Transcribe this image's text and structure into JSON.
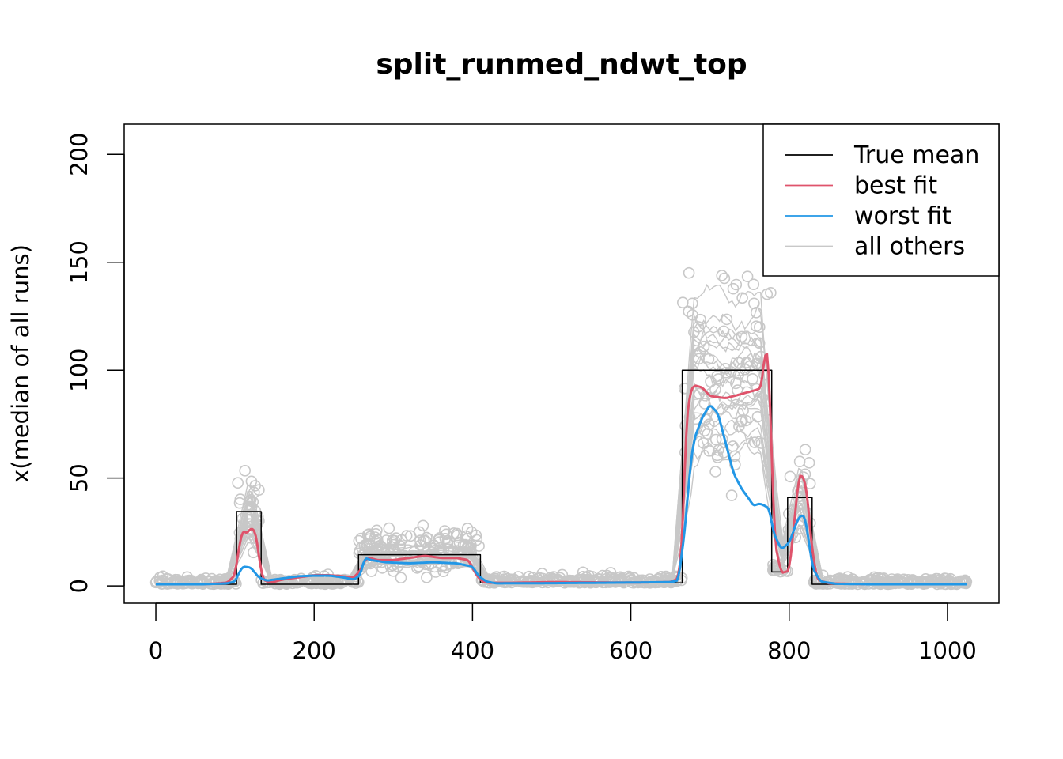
{
  "chart_data": {
    "type": "line",
    "title": "split_runmed_ndwt_top",
    "xlabel": "",
    "ylabel": "x(median of all runs)",
    "xlim": [
      -40,
      1065
    ],
    "ylim": [
      -8,
      214
    ],
    "xticks": [
      0,
      200,
      400,
      600,
      800,
      1000
    ],
    "yticks": [
      0,
      50,
      100,
      150,
      200
    ],
    "grid": false,
    "legend_position": "top-right",
    "legend": [
      {
        "label": "True mean",
        "color": "#000000"
      },
      {
        "label": "best fit",
        "color": "#DF536B"
      },
      {
        "label": "worst fit",
        "color": "#2297E6"
      },
      {
        "label": "all others",
        "color": "#C8C8C8"
      }
    ],
    "series": [
      {
        "name": "True mean",
        "color": "#000000",
        "step": true,
        "x": [
          0,
          102,
          102,
          133,
          133,
          236,
          236,
          256,
          256,
          410,
          410,
          665,
          665,
          778,
          778,
          798,
          798,
          829,
          829,
          1024
        ],
        "y": [
          0.8,
          0.8,
          34.5,
          34.5,
          0.8,
          0.8,
          0.8,
          0.8,
          14.5,
          14.5,
          1.4,
          1.4,
          100,
          100,
          6.5,
          6.5,
          41,
          41,
          0.8,
          0.8
        ]
      },
      {
        "name": "best fit",
        "color": "#DF536B",
        "x": [
          0,
          60,
          90,
          100,
          105,
          110,
          115,
          120,
          126,
          130,
          135,
          145,
          160,
          180,
          200,
          220,
          236,
          250,
          258,
          264,
          270,
          280,
          300,
          320,
          340,
          360,
          380,
          395,
          405,
          412,
          420,
          450,
          500,
          600,
          650,
          660,
          665,
          670,
          675,
          680,
          690,
          700,
          720,
          740,
          760,
          765,
          770,
          774,
          778,
          782,
          790,
          800,
          808,
          812,
          816,
          822,
          828,
          835,
          850,
          900,
          1000,
          1024
        ],
        "y": [
          0.8,
          0.8,
          1.5,
          5,
          18,
          26,
          24,
          27,
          25,
          14,
          3,
          1.5,
          3,
          4,
          5,
          5,
          4.5,
          4,
          7,
          12,
          13,
          12,
          12,
          13,
          14,
          13,
          13,
          12,
          5,
          2.2,
          1.5,
          1.5,
          1.8,
          1.6,
          1.8,
          3.5,
          20,
          75,
          90,
          93,
          92,
          88,
          87,
          89,
          91,
          92,
          110,
          105,
          60,
          20,
          6,
          7,
          35,
          50,
          52,
          45,
          20,
          3,
          1.2,
          0.8,
          0.8,
          0.8
        ]
      },
      {
        "name": "worst fit",
        "color": "#2297E6",
        "x": [
          0,
          60,
          90,
          100,
          105,
          110,
          120,
          130,
          140,
          160,
          180,
          200,
          220,
          236,
          250,
          258,
          264,
          272,
          290,
          320,
          350,
          380,
          400,
          408,
          418,
          430,
          500,
          600,
          650,
          660,
          668,
          675,
          680,
          690,
          700,
          710,
          720,
          730,
          740,
          750,
          755,
          760,
          765,
          770,
          775,
          780,
          790,
          800,
          810,
          815,
          820,
          825,
          830,
          840,
          860,
          900,
          1000,
          1024
        ],
        "y": [
          0.8,
          0.8,
          1.2,
          2,
          6,
          9,
          8.5,
          4,
          2.5,
          3.5,
          4.5,
          4.8,
          4.8,
          4,
          3,
          5,
          13,
          12,
          11,
          10.5,
          11,
          10.5,
          9,
          4.5,
          2,
          1.2,
          1.3,
          1.6,
          1.8,
          2.5,
          25,
          55,
          68,
          78,
          84,
          80,
          66,
          52,
          45,
          40,
          37,
          38,
          38,
          37,
          36,
          25,
          17,
          20,
          30,
          33,
          32,
          20,
          8,
          2,
          1,
          0.8,
          0.8,
          0.8
        ]
      }
    ],
    "background_runs": {
      "name": "all others",
      "color": "#C8C8C8",
      "marker": "open-circle",
      "description_count": 24
    }
  }
}
